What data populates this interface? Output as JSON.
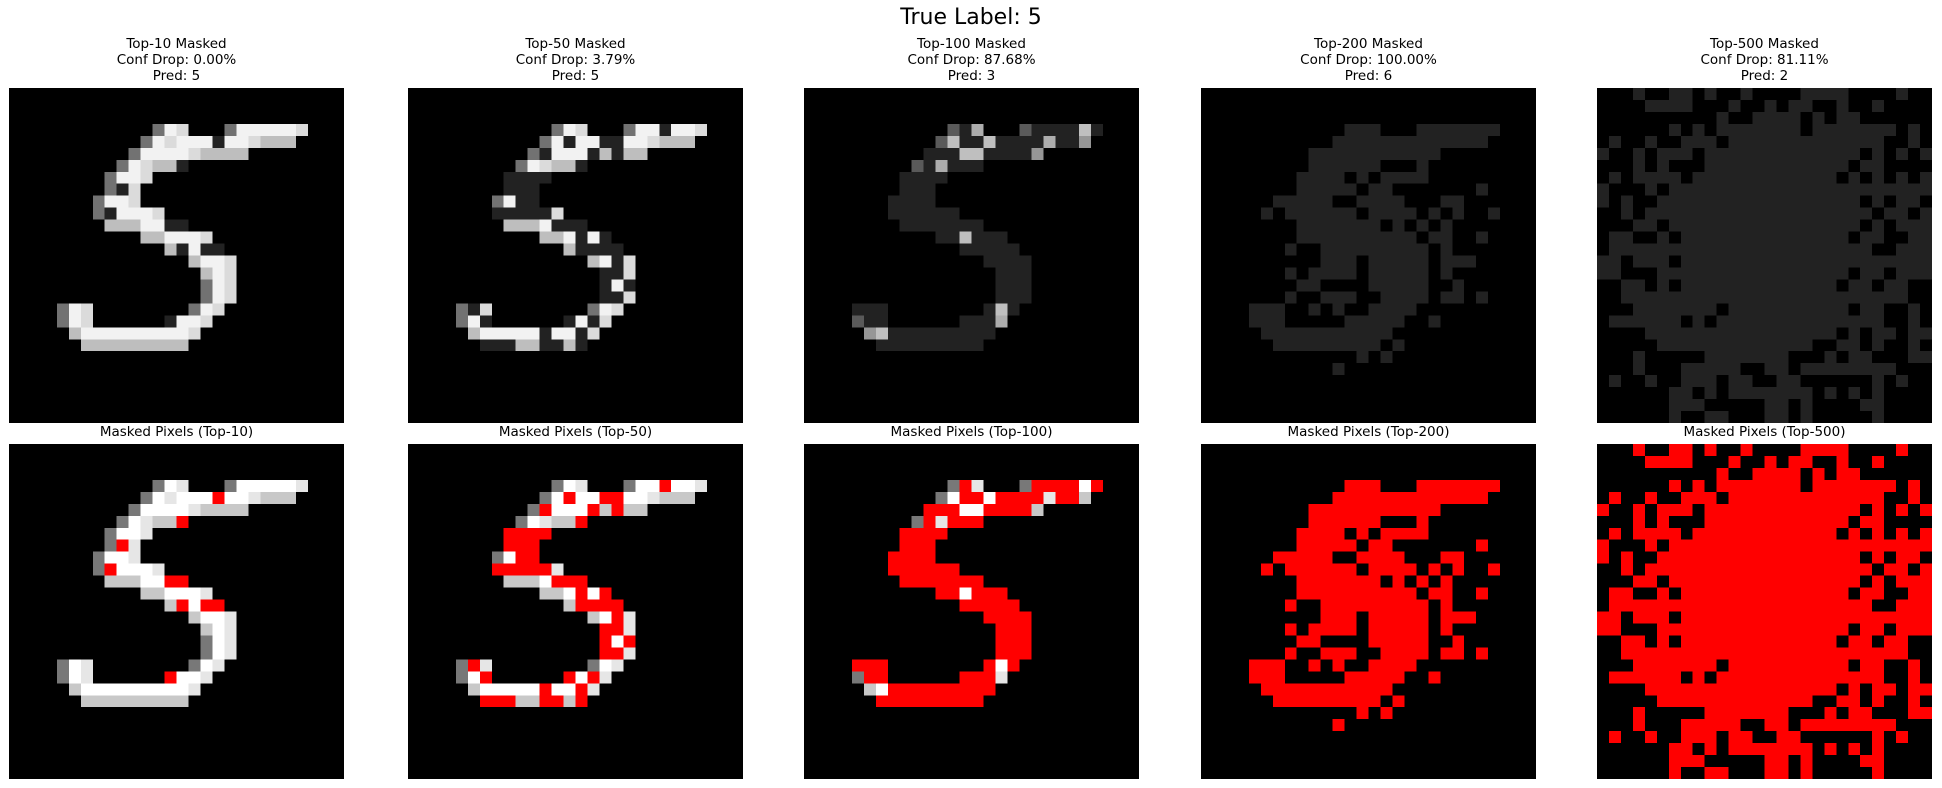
{
  "figure": {
    "title": "True Label: 5"
  },
  "colors": {
    "background": "#000000",
    "mask": "#ff0000"
  },
  "top_row": [
    {
      "title": "Top-10 Masked",
      "conf_drop": "Conf Drop: 0.00%",
      "pred": "Pred: 5"
    },
    {
      "title": "Top-50 Masked",
      "conf_drop": "Conf Drop: 3.79%",
      "pred": "Pred: 5"
    },
    {
      "title": "Top-100 Masked",
      "conf_drop": "Conf Drop: 87.68%",
      "pred": "Pred: 3"
    },
    {
      "title": "Top-200 Masked",
      "conf_drop": "Conf Drop: 100.00%",
      "pred": "Pred: 6"
    },
    {
      "title": "Top-500 Masked",
      "conf_drop": "Conf Drop: 81.11%",
      "pred": "Pred: 2"
    }
  ],
  "bottom_row": [
    {
      "title": "Masked Pixels (Top-10)"
    },
    {
      "title": "Masked Pixels (Top-50)"
    },
    {
      "title": "Masked Pixels (Top-100)"
    },
    {
      "title": "Masked Pixels (Top-200)"
    },
    {
      "title": "Masked Pixels (Top-500)"
    }
  ]
}
